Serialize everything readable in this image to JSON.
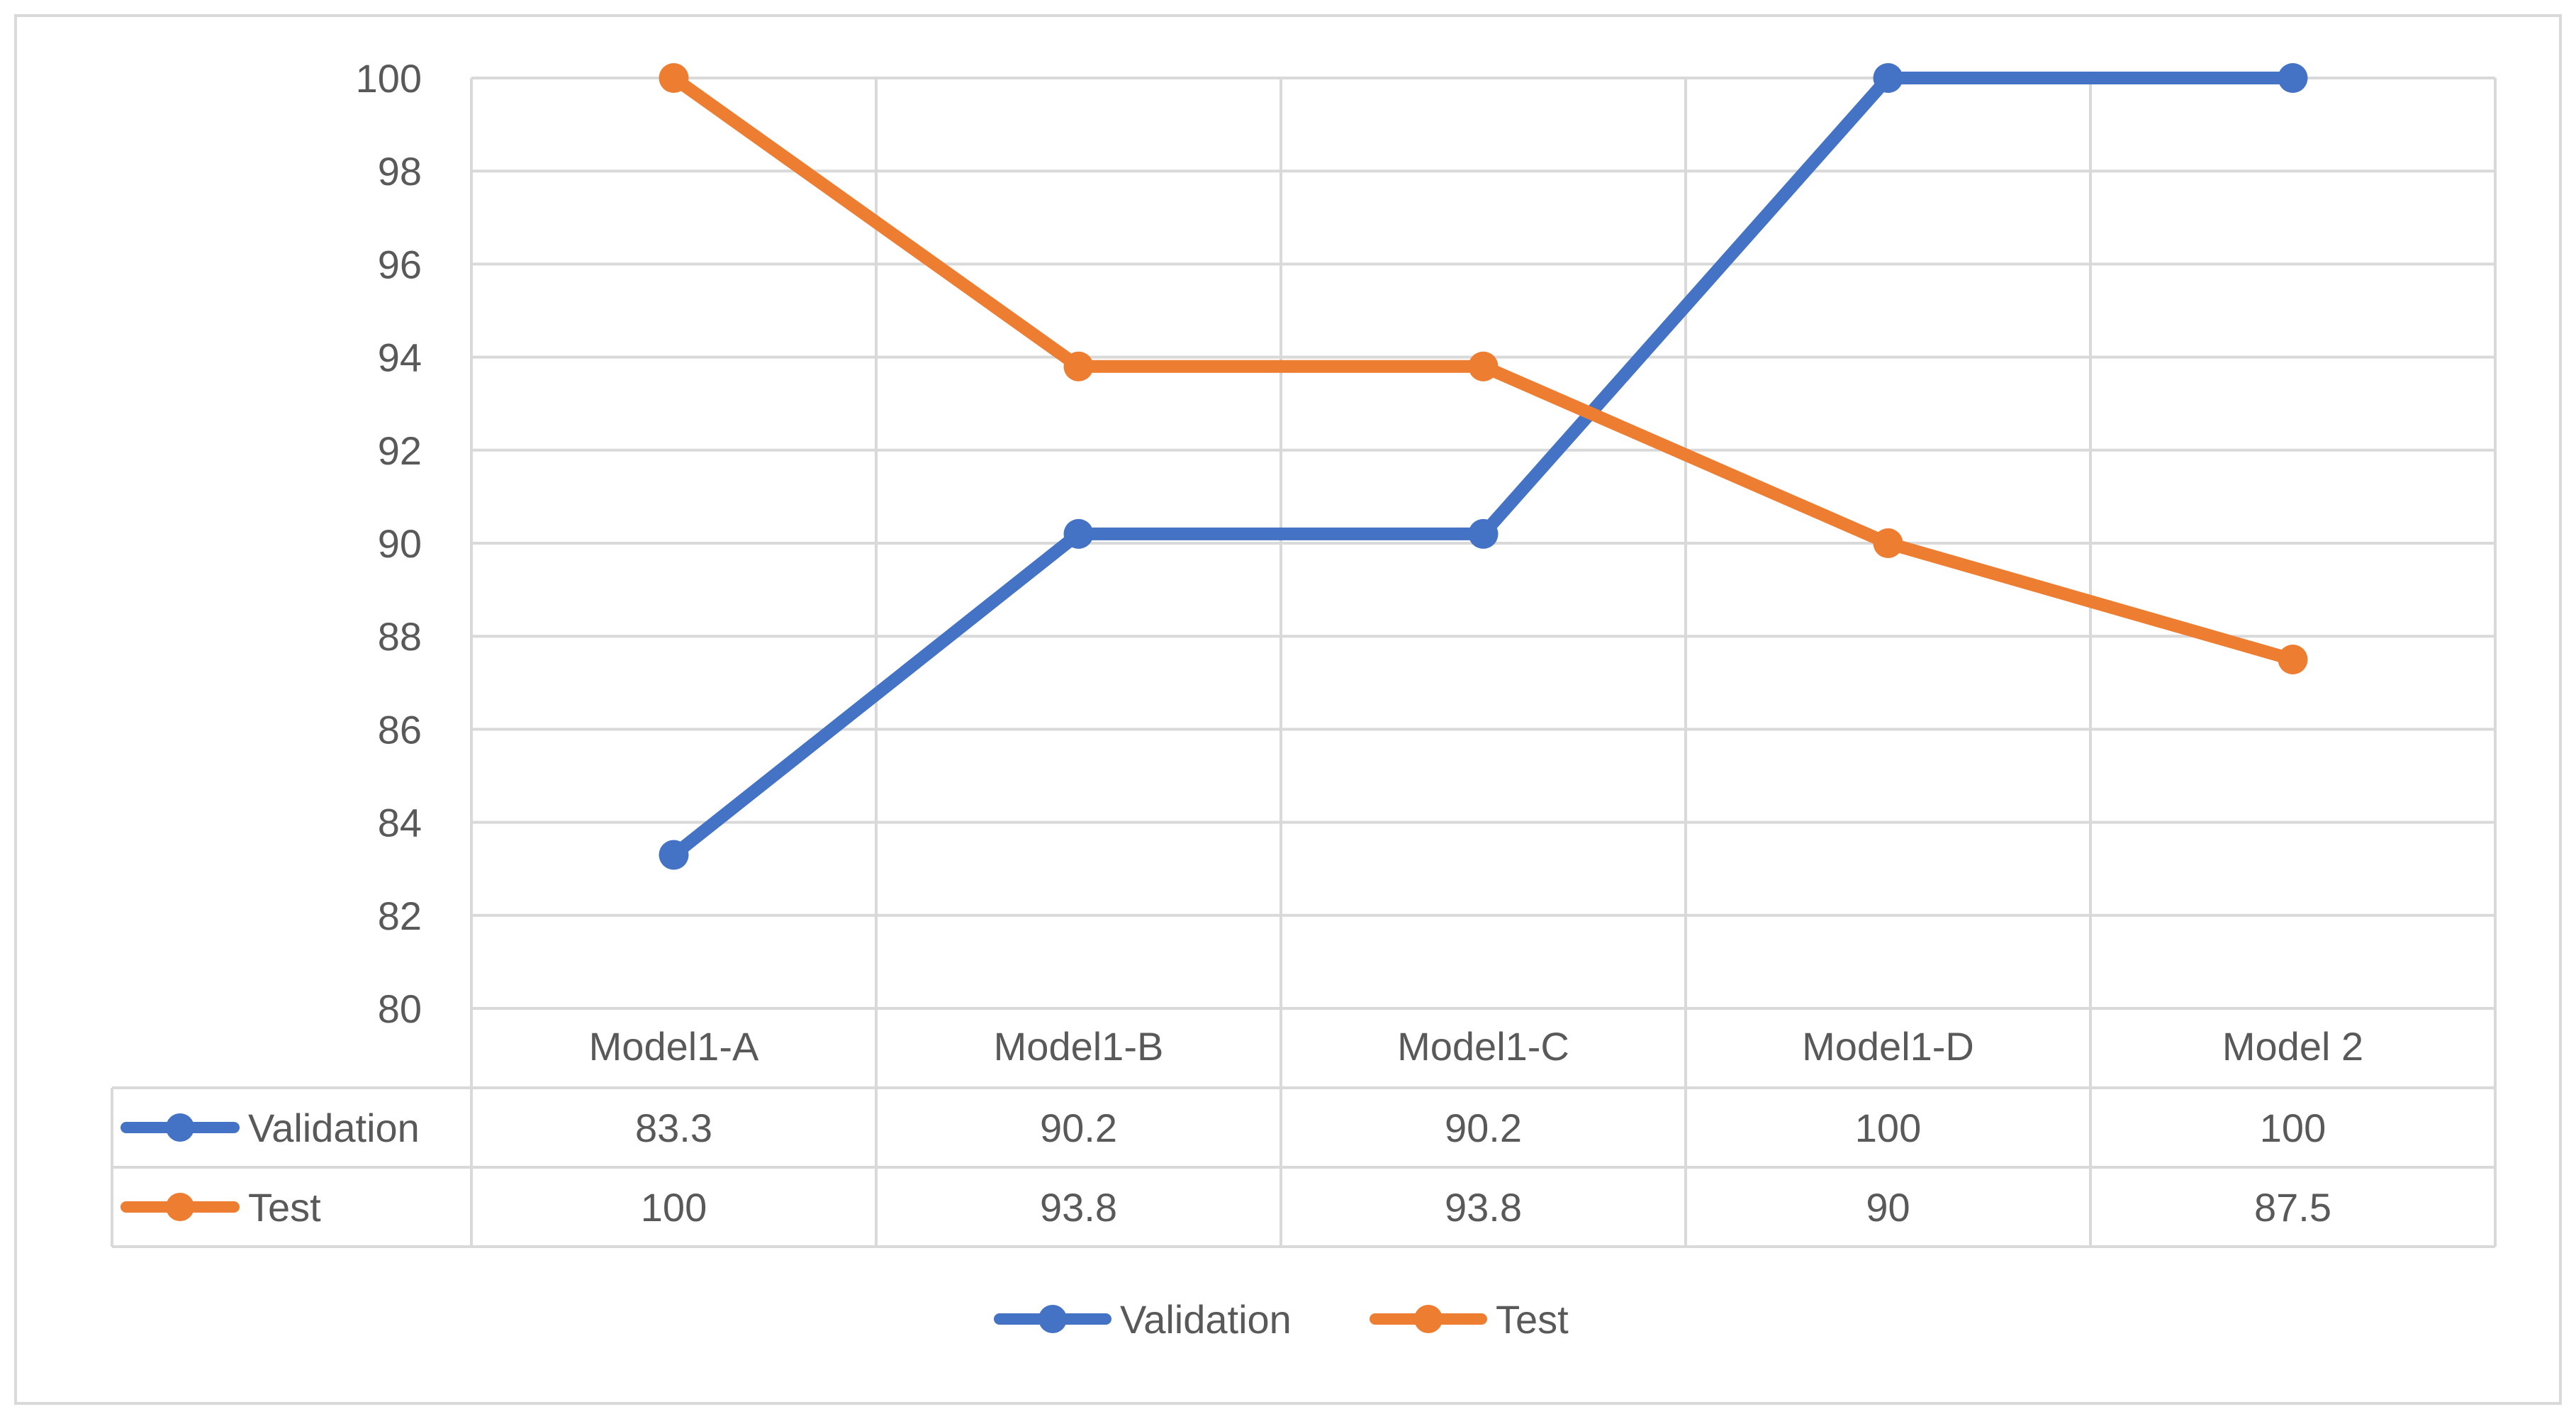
{
  "chart_data": {
    "type": "line",
    "categories": [
      "Model1-A",
      "Model1-B",
      "Model1-C",
      "Model1-D",
      "Model 2"
    ],
    "series": [
      {
        "name": "Validation",
        "values": [
          83.3,
          90.2,
          90.2,
          100,
          100
        ],
        "value_labels": [
          "83.3",
          "90.2",
          "90.2",
          "100",
          "100"
        ],
        "color": "#4472C4"
      },
      {
        "name": "Test",
        "values": [
          100,
          93.8,
          93.8,
          90,
          87.5
        ],
        "value_labels": [
          "100",
          "93.8",
          "93.8",
          "90",
          "87.5"
        ],
        "color": "#ED7D31"
      }
    ],
    "ylim": [
      80,
      100
    ],
    "yticks": [
      80,
      82,
      84,
      86,
      88,
      90,
      92,
      94,
      96,
      98,
      100
    ],
    "ytick_labels": [
      "80",
      "82",
      "84",
      "86",
      "88",
      "90",
      "92",
      "94",
      "96",
      "98",
      "100"
    ],
    "grid": true,
    "legend_position": "bottom",
    "data_table": true,
    "xlabel": "",
    "ylabel": ""
  }
}
